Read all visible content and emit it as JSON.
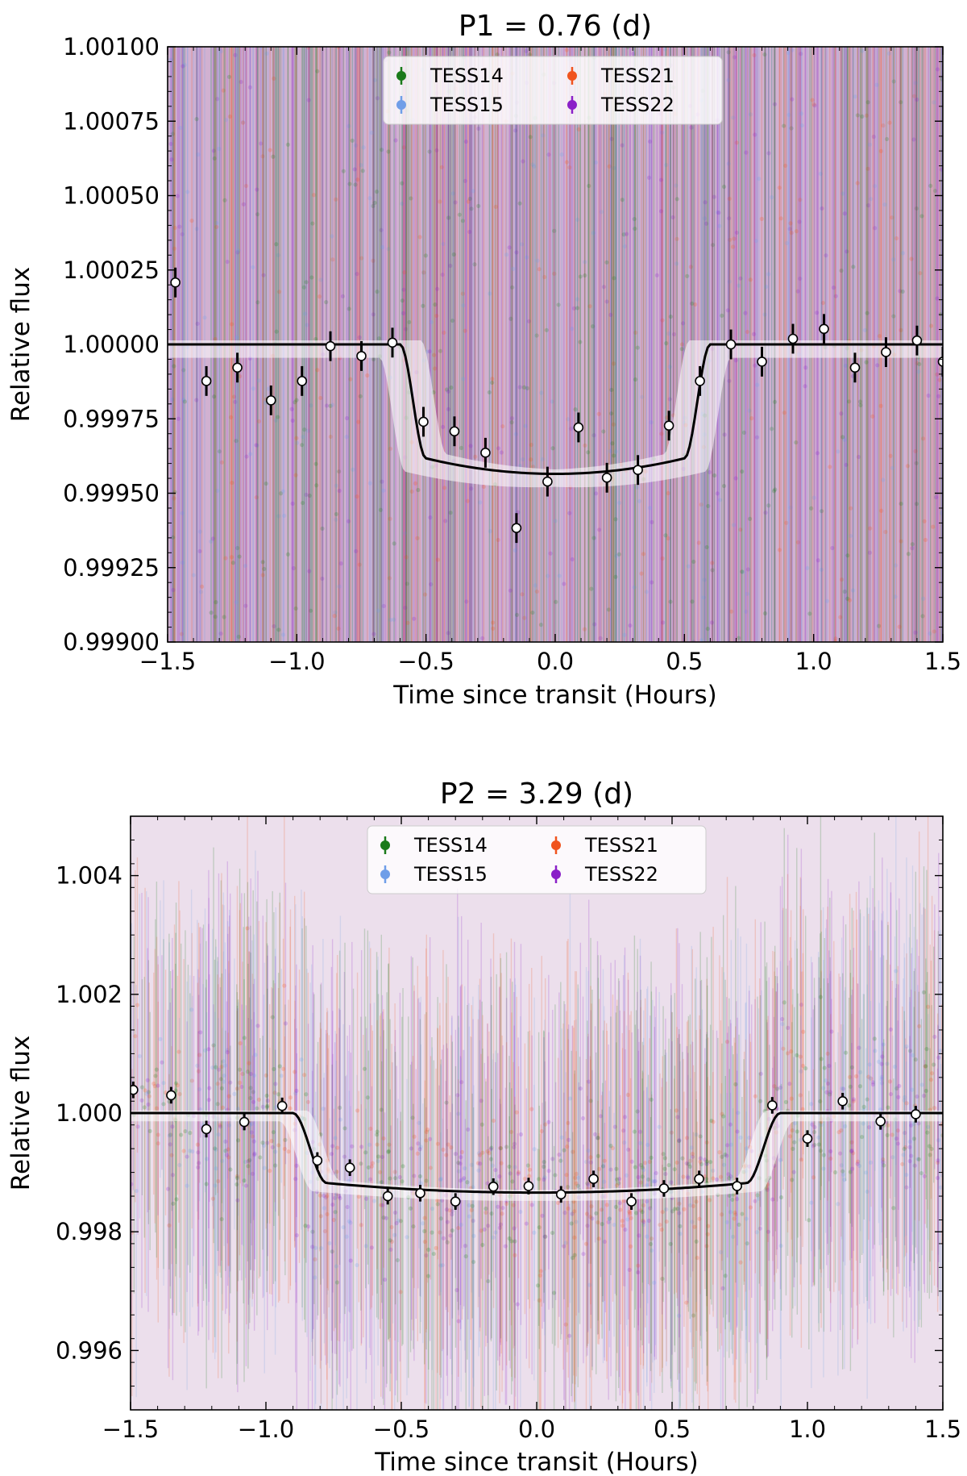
{
  "chart_data": [
    {
      "type": "scatter",
      "title": "P1 = 0.76 (d)",
      "xlabel": "Time since transit (Hours)",
      "ylabel": "Relative flux",
      "xlim": [
        -1.5,
        1.5
      ],
      "ylim": [
        0.999,
        1.001
      ],
      "xticks": [
        -1.5,
        -1.0,
        -0.5,
        0.0,
        0.5,
        1.0,
        1.5
      ],
      "xtick_labels": [
        "−1.5",
        "−1.0",
        "−0.5",
        "0.0",
        "0.5",
        "1.0",
        "1.5"
      ],
      "yticks": [
        0.999,
        0.99925,
        0.9995,
        0.99975,
        1.0,
        1.00025,
        1.0005,
        1.00075,
        1.001
      ],
      "ytick_labels": [
        "0.99900",
        "0.99925",
        "0.99950",
        "0.99975",
        "1.00000",
        "1.00025",
        "1.00050",
        "1.00075",
        "1.00100"
      ],
      "legend": {
        "position": "top-center",
        "entries": [
          {
            "label": "TESS14",
            "color": "#1a7a1a"
          },
          {
            "label": "TESS21",
            "color": "#f0541e"
          },
          {
            "label": "TESS15",
            "color": "#6f9ee8"
          },
          {
            "label": "TESS22",
            "color": "#8a20c8"
          }
        ]
      },
      "background_tint": "#c9a3c9",
      "model": {
        "depth": 0.000435,
        "t14": 1.2,
        "t23": 1.0,
        "band": 4.5e-05,
        "edge_blur": 0.08
      },
      "binned": {
        "x": [
          -1.47,
          -1.35,
          -1.23,
          -1.1,
          -0.98,
          -0.87,
          -0.75,
          -0.63,
          -0.51,
          -0.39,
          -0.27,
          -0.15,
          -0.03,
          0.09,
          0.2,
          0.32,
          0.44,
          0.56,
          0.68,
          0.8,
          0.92,
          1.04,
          1.16,
          1.28,
          1.4,
          1.5
        ],
        "y": [
          1.000208,
          0.999877,
          0.999922,
          0.999812,
          0.999877,
          0.999994,
          0.999961,
          1.000006,
          0.99974,
          0.999708,
          0.999636,
          0.999383,
          0.999539,
          0.999721,
          0.999552,
          0.999578,
          0.999727,
          0.999877,
          1.0,
          0.999942,
          1.000019,
          1.000052,
          0.999922,
          0.999974,
          1.000013,
          0.999942
        ],
        "yerr": [
          5e-05,
          5e-05,
          5e-05,
          5e-05,
          5e-05,
          5e-05,
          5e-05,
          5e-05,
          5e-05,
          5e-05,
          5e-05,
          5e-05,
          5e-05,
          5e-05,
          5e-05,
          5e-05,
          5e-05,
          5e-05,
          5e-05,
          5e-05,
          5e-05,
          5e-05,
          5e-05,
          5e-05,
          5e-05,
          5e-05
        ]
      },
      "raw_scatter_sigma": 0.002
    },
    {
      "type": "scatter",
      "title": "P2 = 3.29 (d)",
      "xlabel": "Time since transit (Hours)",
      "ylabel": "Relative flux",
      "xlim": [
        -1.5,
        1.5
      ],
      "ylim": [
        0.995,
        1.005
      ],
      "xticks": [
        -1.5,
        -1.0,
        -0.5,
        0.0,
        0.5,
        1.0,
        1.5
      ],
      "xtick_labels": [
        "−1.5",
        "−1.0",
        "−0.5",
        "0.0",
        "0.5",
        "1.0",
        "1.5"
      ],
      "yticks": [
        0.996,
        0.998,
        1.0,
        1.002,
        1.004
      ],
      "ytick_labels": [
        "0.996",
        "0.998",
        "1.000",
        "1.002",
        "1.004"
      ],
      "legend": {
        "position": "top-center",
        "entries": [
          {
            "label": "TESS14",
            "color": "#1a7a1a"
          },
          {
            "label": "TESS21",
            "color": "#f0541e"
          },
          {
            "label": "TESS15",
            "color": "#6f9ee8"
          },
          {
            "label": "TESS22",
            "color": "#8a20c8"
          }
        ]
      },
      "background_tint": "#c9a3c9",
      "model": {
        "depth": 0.00134,
        "t14": 1.8,
        "t23": 1.55,
        "band": 0.00014,
        "edge_blur": 0.05
      },
      "binned": {
        "x": [
          -1.49,
          -1.35,
          -1.22,
          -1.08,
          -0.94,
          -0.81,
          -0.69,
          -0.55,
          -0.43,
          -0.3,
          -0.16,
          -0.03,
          0.09,
          0.21,
          0.35,
          0.47,
          0.6,
          0.74,
          0.87,
          1.0,
          1.13,
          1.27,
          1.4
        ],
        "y": [
          1.00039,
          1.0003,
          0.99973,
          0.99985,
          1.00012,
          0.9992,
          0.99908,
          0.9986,
          0.99865,
          0.99851,
          0.99876,
          0.99877,
          0.99863,
          0.99889,
          0.99851,
          0.99873,
          0.99889,
          0.99877,
          1.00013,
          0.99957,
          1.0002,
          0.99986,
          0.99998
        ],
        "yerr": [
          0.00014,
          0.00014,
          0.00014,
          0.00014,
          0.00014,
          0.00014,
          0.00014,
          0.00014,
          0.00014,
          0.00014,
          0.00014,
          0.00014,
          0.00014,
          0.00014,
          0.00014,
          0.00014,
          0.00014,
          0.00014,
          0.00014,
          0.00014,
          0.00014,
          0.00014,
          0.00014
        ]
      },
      "raw_scatter_sigma": 0.0022
    }
  ]
}
